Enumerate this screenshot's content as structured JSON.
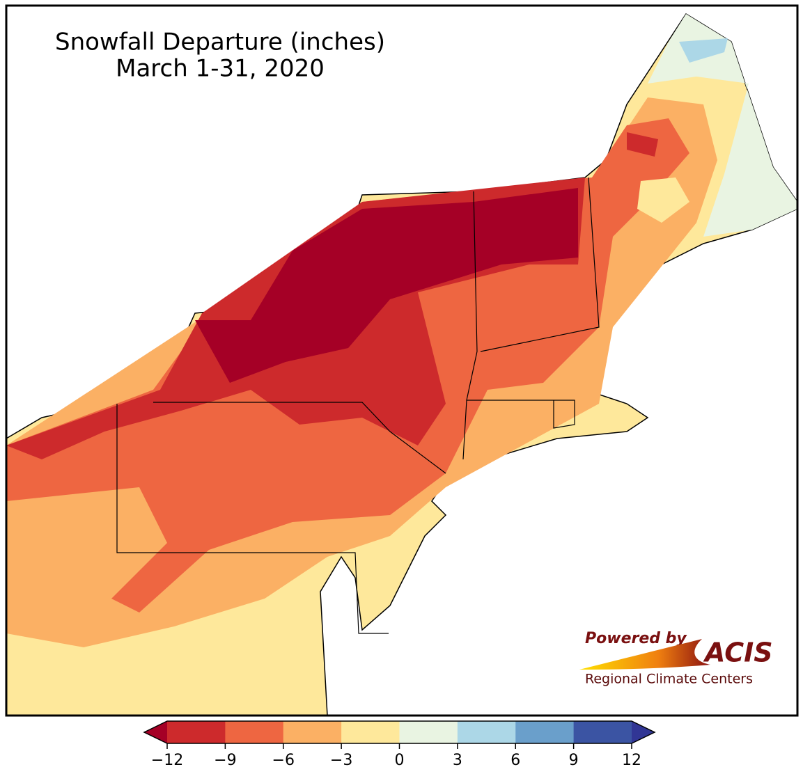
{
  "chart_data": {
    "type": "map",
    "title": "Snowfall Departure (inches)",
    "subtitle": "March 1-31, 2020",
    "colorbar": {
      "ticks": [
        {
          "value": -12,
          "label": "−12"
        },
        {
          "value": -9,
          "label": "−9"
        },
        {
          "value": -6,
          "label": "−6"
        },
        {
          "value": -3,
          "label": "−3"
        },
        0,
        3,
        6,
        9,
        12
      ],
      "colors": [
        "#cd2a2c",
        "#ee6641",
        "#fbb064",
        "#fee89b",
        "#e9f4e2",
        "#acd7e7",
        "#6a9fcb",
        "#3b54a3"
      ],
      "extend_min_color": "#a50026",
      "extend_max_color": "#313695"
    },
    "logo": {
      "line1": "Powered by",
      "brand": "ACIS",
      "line2": "Regional Climate Centers"
    }
  }
}
